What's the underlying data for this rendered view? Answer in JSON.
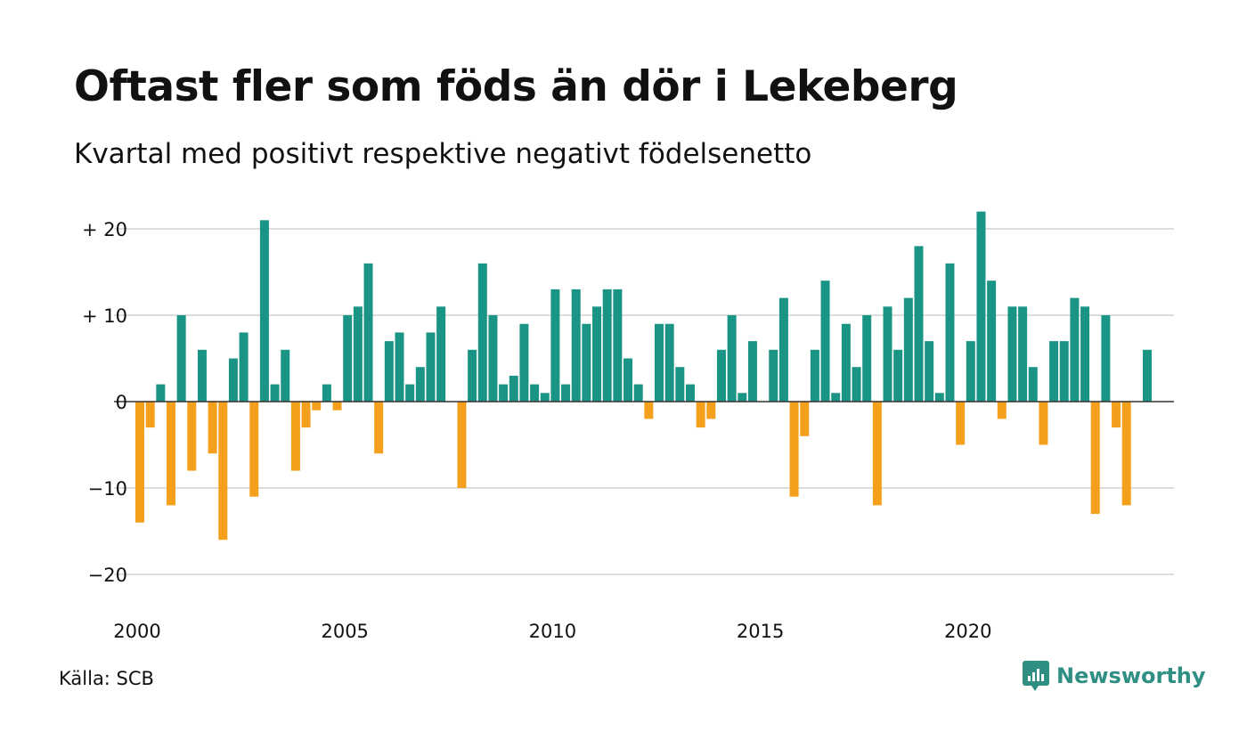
{
  "title": "Oftast fler som föds än dör i Lekeberg",
  "subtitle": "Kvartal med positivt respektive negativt födelsenetto",
  "source": "Källa: SCB",
  "brand": "Newsworthy",
  "chart_data": {
    "type": "bar",
    "x_start_year": 2000,
    "periods_per_year": 4,
    "values": [
      -14,
      -3,
      2,
      -12,
      10,
      -8,
      6,
      -6,
      -16,
      5,
      8,
      -11,
      21,
      2,
      6,
      -8,
      -3,
      -1,
      2,
      -1,
      10,
      11,
      16,
      -6,
      7,
      8,
      2,
      4,
      8,
      11,
      0,
      -10,
      6,
      16,
      10,
      2,
      3,
      9,
      2,
      1,
      13,
      2,
      13,
      9,
      11,
      13,
      13,
      5,
      2,
      -2,
      9,
      9,
      4,
      2,
      -3,
      -2,
      6,
      10,
      1,
      7,
      0,
      6,
      12,
      -11,
      -4,
      6,
      14,
      1,
      9,
      4,
      10,
      -12,
      11,
      6,
      12,
      18,
      7,
      1,
      16,
      -5,
      7,
      22,
      14,
      -2,
      11,
      11,
      4,
      -5,
      7,
      7,
      12,
      11,
      -13,
      10,
      -3,
      -12,
      0,
      6
    ],
    "x_ticks": [
      "2000",
      "2005",
      "2010",
      "2015",
      "2020"
    ],
    "y_ticks": [
      20,
      10,
      0,
      -10,
      -20
    ],
    "y_tick_labels": [
      "+ 20",
      "+ 10",
      "0",
      "−10",
      "−20"
    ],
    "ylim": [
      -20,
      20
    ],
    "grid": true,
    "colors": {
      "positive": "#1a9585",
      "negative": "#f5a01d",
      "grid": "#dddddd",
      "axis": "#333333"
    }
  }
}
